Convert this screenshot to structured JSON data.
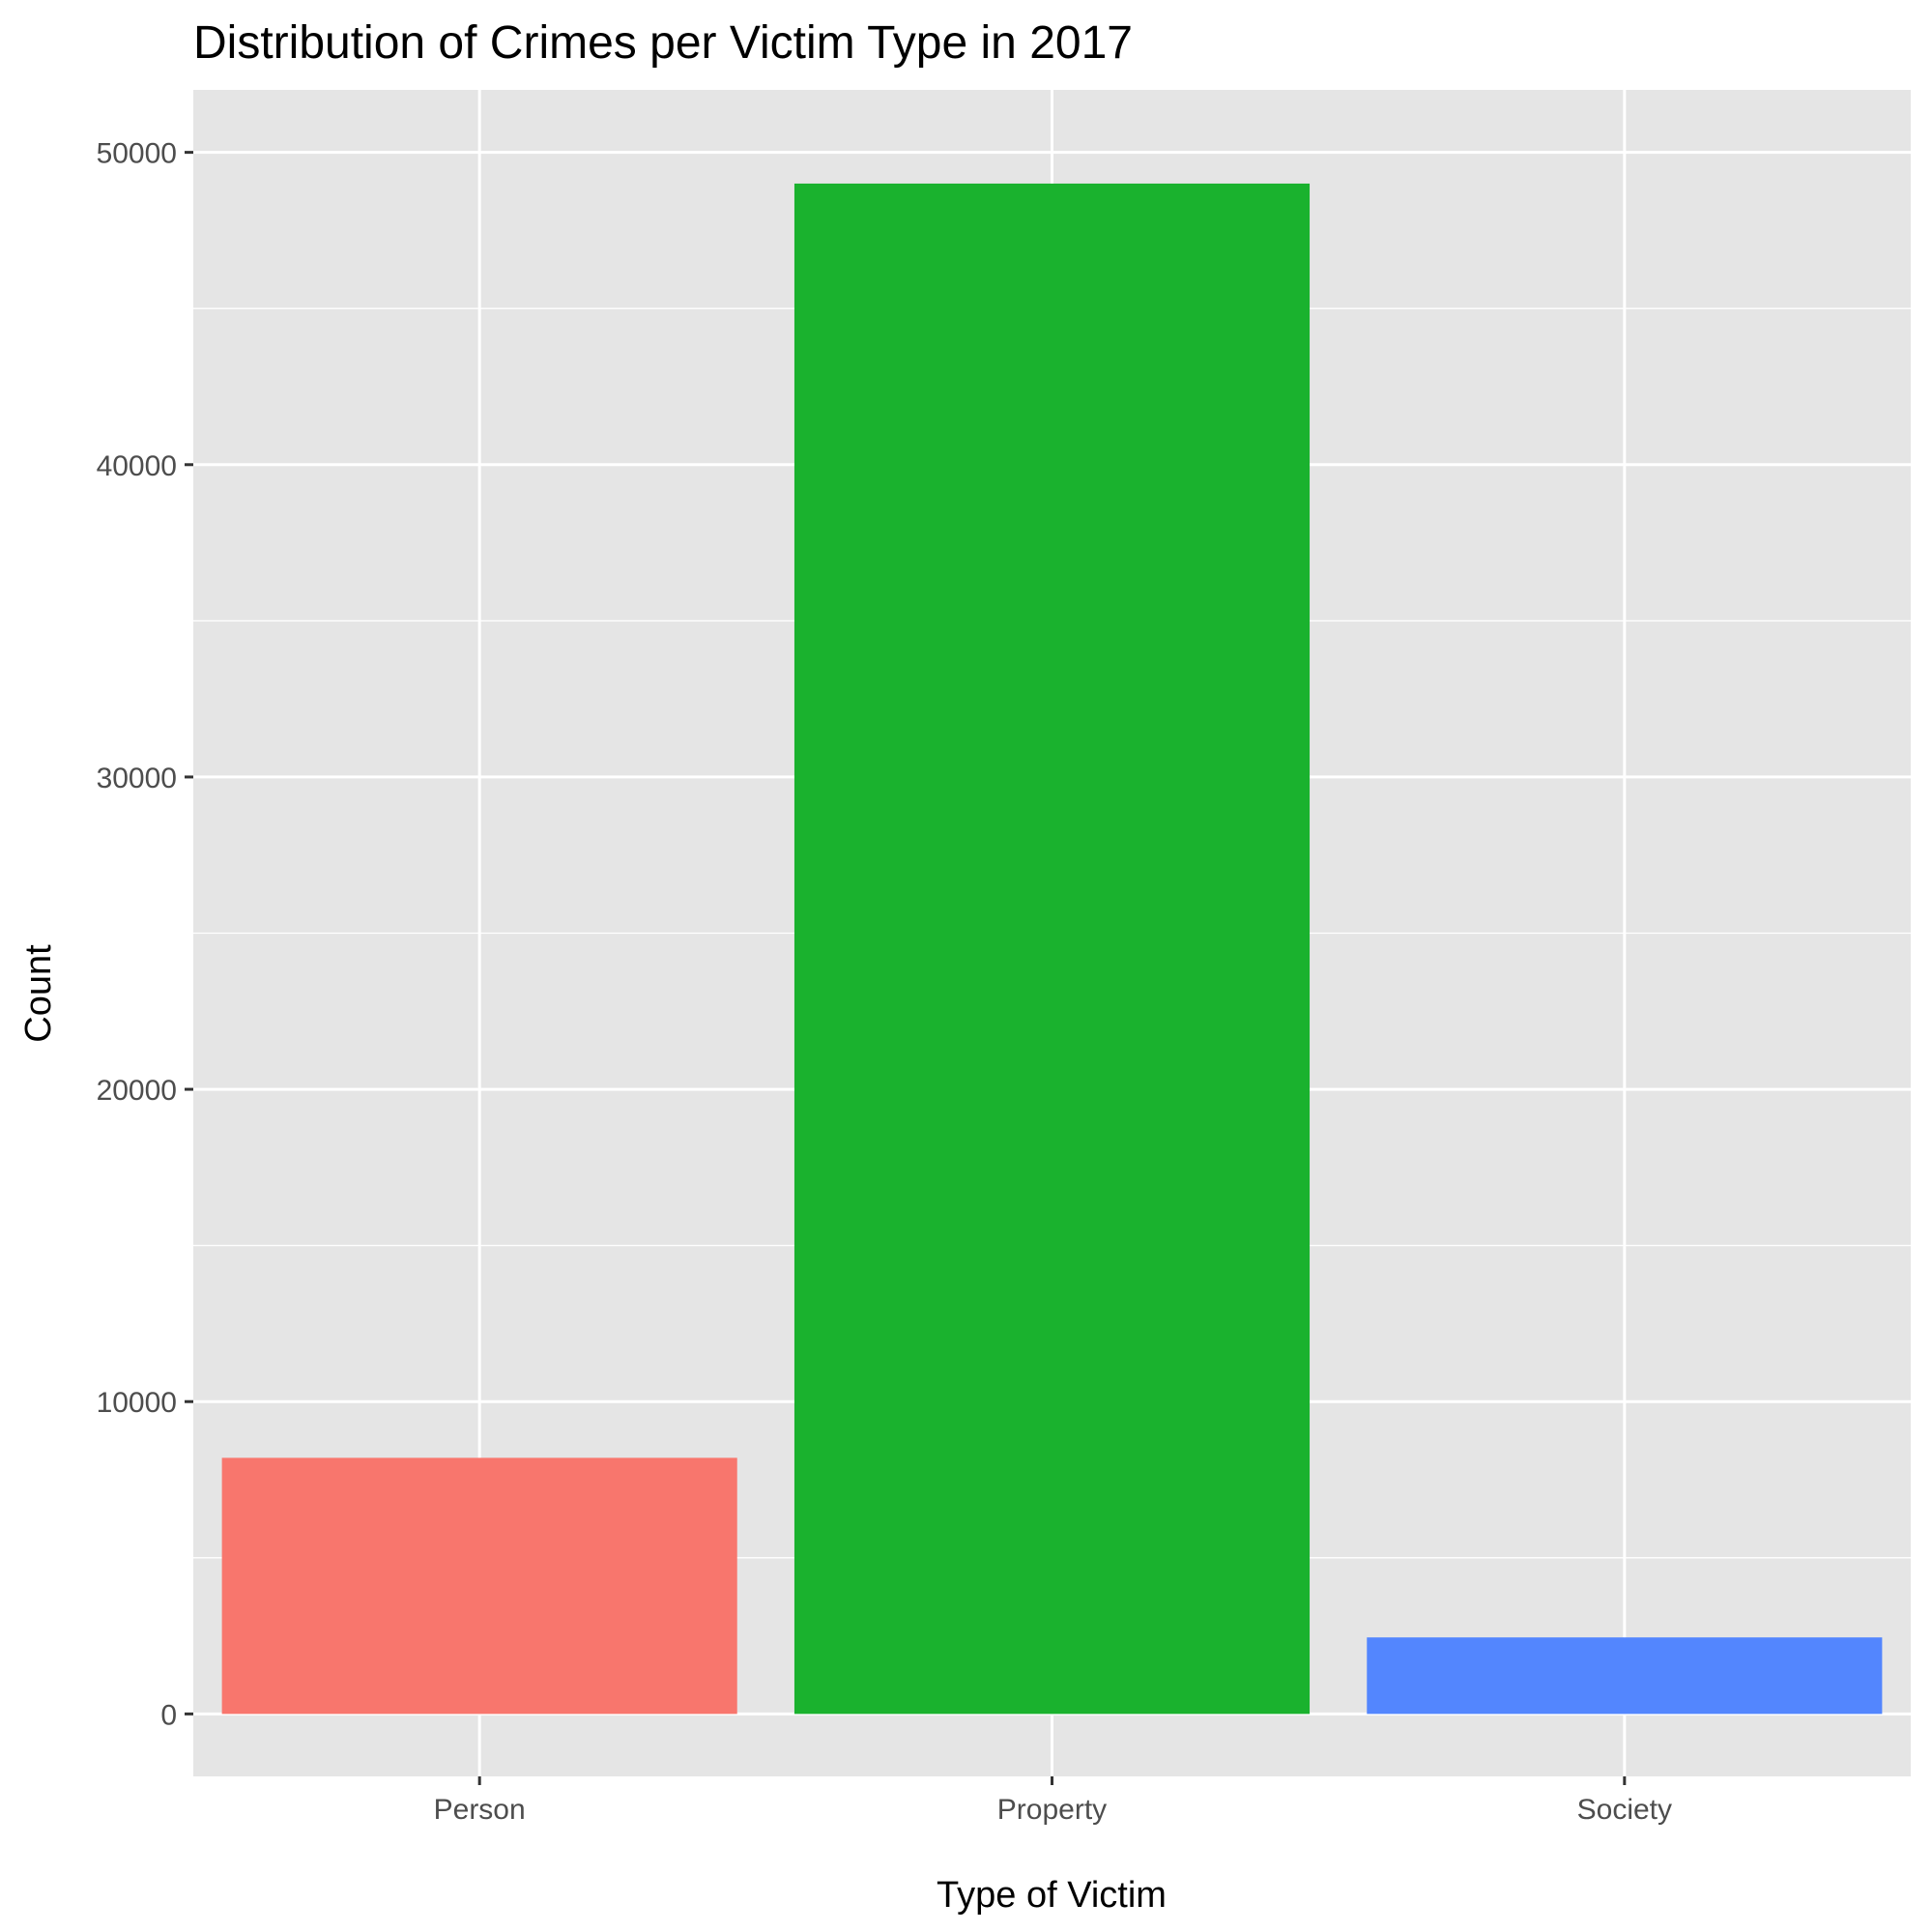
{
  "chart_data": {
    "type": "bar",
    "title": "Distribution of Crimes per Victim Type in 2017",
    "xlabel": "Type of Victim",
    "ylabel": "Count",
    "categories": [
      "Person",
      "Property",
      "Society"
    ],
    "values": [
      8200,
      49000,
      2450
    ],
    "colors": [
      "#F8766D",
      "#1AB22E",
      "#5386FE"
    ],
    "ylim": [
      -2000,
      52000
    ],
    "yticks": [
      0,
      10000,
      20000,
      30000,
      40000,
      50000
    ],
    "ytick_labels": [
      "0",
      "10000",
      "20000",
      "30000",
      "40000",
      "50000"
    ],
    "grid": true,
    "legend": "none",
    "panel_background": "#E5E5E5",
    "grid_color": "#FFFFFF"
  }
}
